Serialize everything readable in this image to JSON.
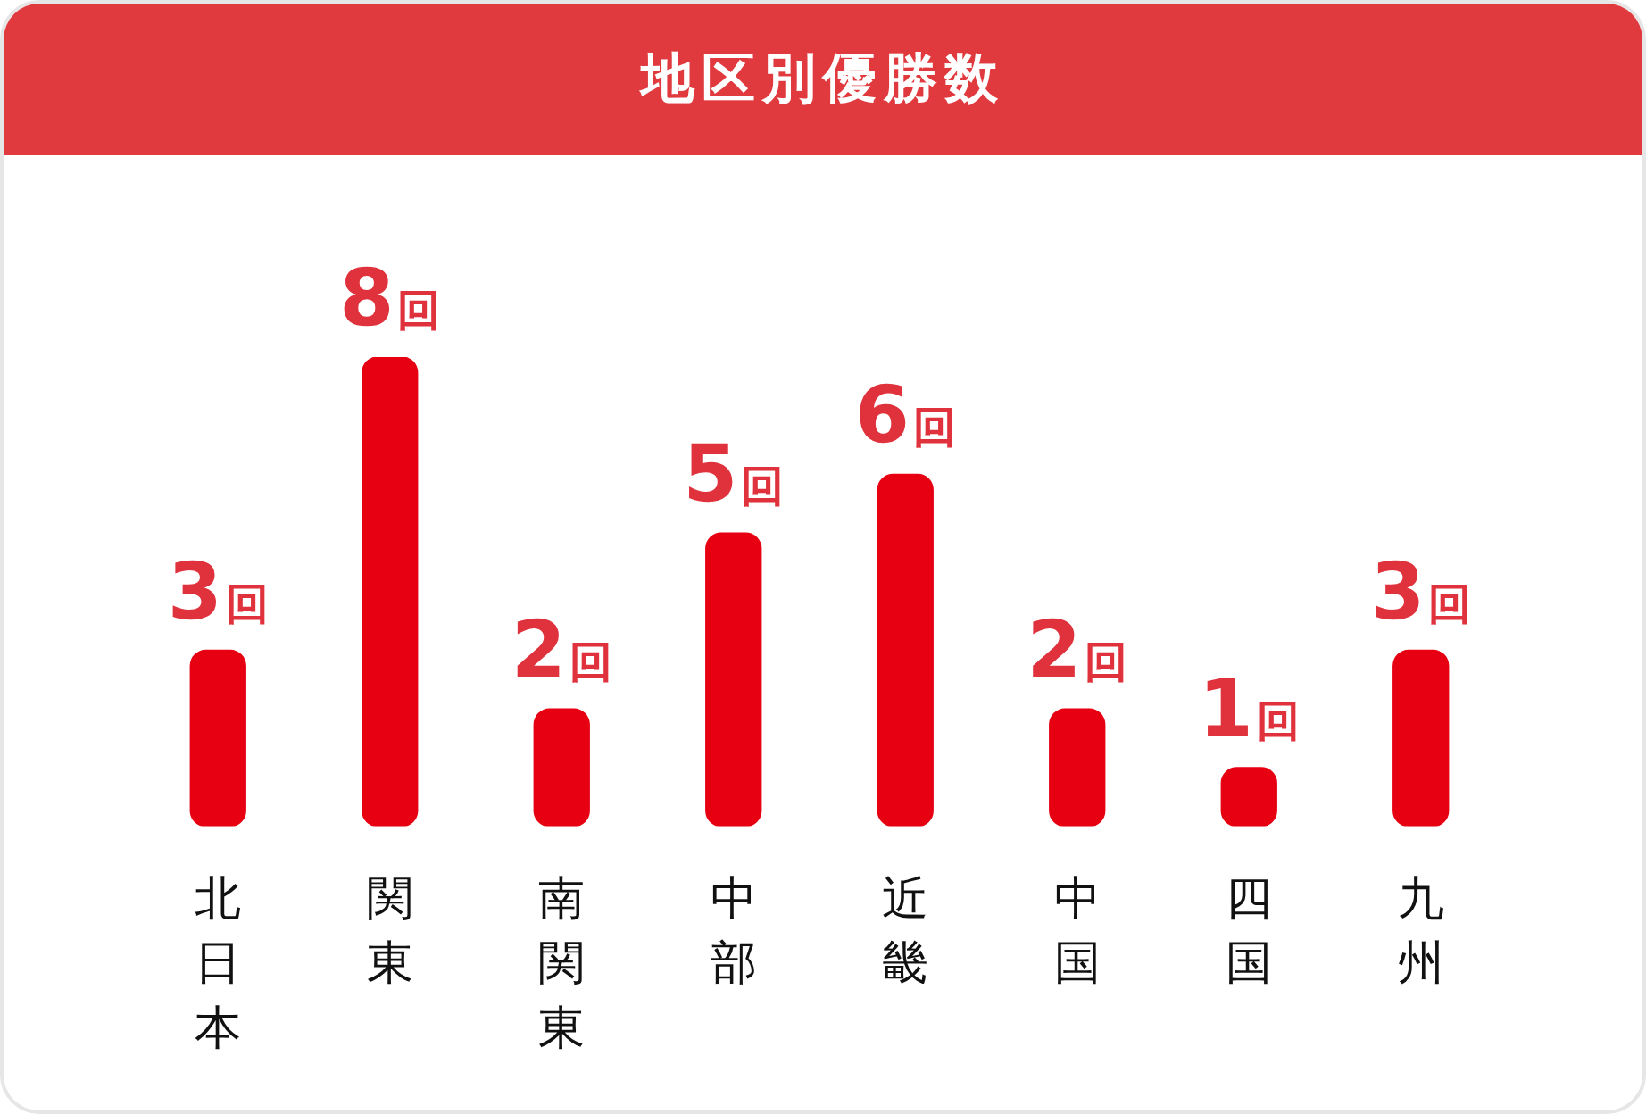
{
  "chart_data": {
    "type": "bar",
    "title": "地区別優勝数",
    "categories": [
      "北日本",
      "関東",
      "南関東",
      "中部",
      "近畿",
      "中国",
      "四国",
      "九州"
    ],
    "values": [
      3,
      8,
      2,
      5,
      6,
      2,
      1,
      3
    ],
    "value_labels": [
      "3回",
      "8回",
      "2回",
      "5回",
      "6回",
      "2回",
      "1回",
      "3回"
    ],
    "color": "#e60012"
  }
}
